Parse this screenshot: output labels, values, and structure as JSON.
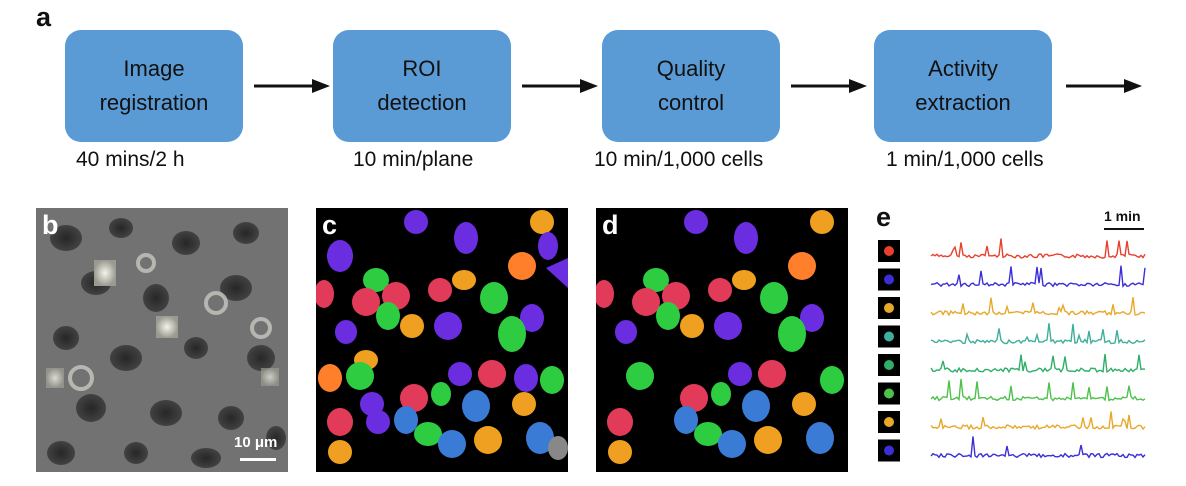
{
  "panel_labels": {
    "a": "a",
    "b": "b",
    "c": "c",
    "d": "d",
    "e": "e"
  },
  "pipeline": {
    "steps": [
      {
        "label": "Image\nregistration",
        "time": "40 mins/2 h"
      },
      {
        "label": "ROI\ndetection",
        "time": "10 min/plane"
      },
      {
        "label": "Quality\ncontrol",
        "time": "10 min/1,000 cells"
      },
      {
        "label": "Activity\nextraction",
        "time": "1 min/1,000 cells"
      }
    ]
  },
  "scalebar": {
    "label": "10 μm"
  },
  "traces": {
    "time_scale_label": "1 min",
    "colors": [
      "#e8402f",
      "#3b2ed6",
      "#e8a82a",
      "#3fae9c",
      "#2fae6a",
      "#4cc24a",
      "#e8a82a",
      "#3b2ed6"
    ]
  },
  "roi_colors": [
    "#3a7bd5",
    "#e23b5a",
    "#2ecc40",
    "#f0a020",
    "#6a2ee0",
    "#ff7f2a",
    "#1a9e5a",
    "#d62870"
  ]
}
